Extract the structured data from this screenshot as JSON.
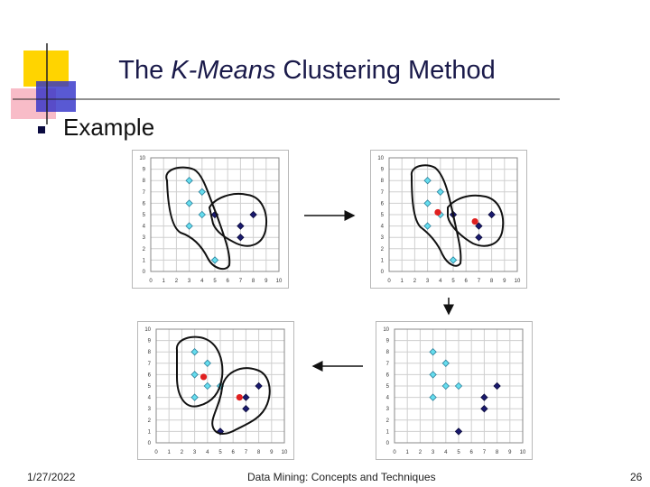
{
  "slide": {
    "title_prefix": "The ",
    "title_italic": "K-Means",
    "title_suffix": " Clustering Method",
    "bullet": "Example",
    "footer_date": "1/27/2022",
    "footer_center": "Data Mining: Concepts and Techniques",
    "page_number": "26"
  },
  "colors": {
    "light_points": "#66ddee",
    "dark_points": "#1a1a6e",
    "centroids": "#e02020",
    "deco_yellow": "#ffd400",
    "deco_blue": "#3030c8",
    "deco_pink": "#f5a0b0"
  },
  "icons": [
    "bullet-square-icon",
    "right-arrow-icon",
    "down-arrow-icon",
    "left-arrow-icon"
  ],
  "chart_data": [
    {
      "type": "scatter",
      "panel": "top-left",
      "x_ticks": [
        "0",
        "1",
        "2",
        "3",
        "4",
        "5",
        "6",
        "7",
        "8",
        "9",
        "10"
      ],
      "y_ticks": [
        "0",
        "1",
        "2",
        "3",
        "4",
        "5",
        "6",
        "7",
        "8",
        "9",
        "10"
      ],
      "xlim": [
        0,
        10
      ],
      "ylim": [
        0,
        10
      ],
      "grid": true,
      "series": [
        {
          "color": "light",
          "points": [
            [
              3,
              8
            ],
            [
              4,
              7
            ],
            [
              3,
              6
            ],
            [
              4,
              5
            ],
            [
              3,
              4
            ],
            [
              5,
              1
            ]
          ]
        },
        {
          "color": "dark",
          "points": [
            [
              5,
              5
            ],
            [
              7,
              4
            ],
            [
              8,
              5
            ],
            [
              7,
              3
            ]
          ]
        }
      ],
      "centroids": [],
      "cluster_outlines": 2
    },
    {
      "type": "scatter",
      "panel": "top-right",
      "x_ticks": [
        "0",
        "1",
        "2",
        "3",
        "4",
        "5",
        "6",
        "7",
        "8",
        "9",
        "10"
      ],
      "y_ticks": [
        "0",
        "1",
        "2",
        "3",
        "4",
        "5",
        "6",
        "7",
        "8",
        "9",
        "10"
      ],
      "xlim": [
        0,
        10
      ],
      "ylim": [
        0,
        10
      ],
      "grid": true,
      "series": [
        {
          "color": "light",
          "points": [
            [
              3,
              8
            ],
            [
              4,
              7
            ],
            [
              3,
              6
            ],
            [
              4,
              5
            ],
            [
              3,
              4
            ],
            [
              5,
              1
            ]
          ]
        },
        {
          "color": "dark",
          "points": [
            [
              5,
              5
            ],
            [
              7,
              4
            ],
            [
              8,
              5
            ],
            [
              7,
              3
            ]
          ]
        }
      ],
      "centroids": [
        [
          3.8,
          5.2
        ],
        [
          6.7,
          4.4
        ]
      ],
      "cluster_outlines": 2
    },
    {
      "type": "scatter",
      "panel": "bottom-right",
      "x_ticks": [
        "0",
        "1",
        "2",
        "3",
        "4",
        "5",
        "6",
        "7",
        "8",
        "9",
        "10"
      ],
      "y_ticks": [
        "0",
        "1",
        "2",
        "3",
        "4",
        "5",
        "6",
        "7",
        "8",
        "9",
        "10"
      ],
      "xlim": [
        0,
        10
      ],
      "ylim": [
        0,
        10
      ],
      "grid": true,
      "series": [
        {
          "color": "light",
          "points": [
            [
              3,
              8
            ],
            [
              4,
              7
            ],
            [
              3,
              6
            ],
            [
              3,
              4
            ],
            [
              4,
              5
            ],
            [
              5,
              5
            ]
          ]
        },
        {
          "color": "dark",
          "points": [
            [
              7,
              4
            ],
            [
              8,
              5
            ],
            [
              7,
              3
            ],
            [
              5,
              1
            ]
          ]
        }
      ],
      "centroids": [],
      "cluster_outlines": 0
    },
    {
      "type": "scatter",
      "panel": "bottom-left",
      "x_ticks": [
        "0",
        "1",
        "2",
        "3",
        "4",
        "5",
        "6",
        "7",
        "8",
        "9",
        "10"
      ],
      "y_ticks": [
        "0",
        "1",
        "2",
        "3",
        "4",
        "5",
        "6",
        "7",
        "8",
        "9",
        "10"
      ],
      "xlim": [
        0,
        10
      ],
      "ylim": [
        0,
        10
      ],
      "grid": true,
      "series": [
        {
          "color": "light",
          "points": [
            [
              3,
              8
            ],
            [
              4,
              7
            ],
            [
              3,
              6
            ],
            [
              4,
              5
            ],
            [
              5,
              5
            ],
            [
              3,
              4
            ]
          ]
        },
        {
          "color": "dark",
          "points": [
            [
              7,
              4
            ],
            [
              8,
              5
            ],
            [
              7,
              3
            ],
            [
              5,
              1
            ]
          ]
        }
      ],
      "centroids": [
        [
          3.7,
          5.8
        ],
        [
          6.5,
          4.0
        ]
      ],
      "cluster_outlines": 2
    }
  ]
}
